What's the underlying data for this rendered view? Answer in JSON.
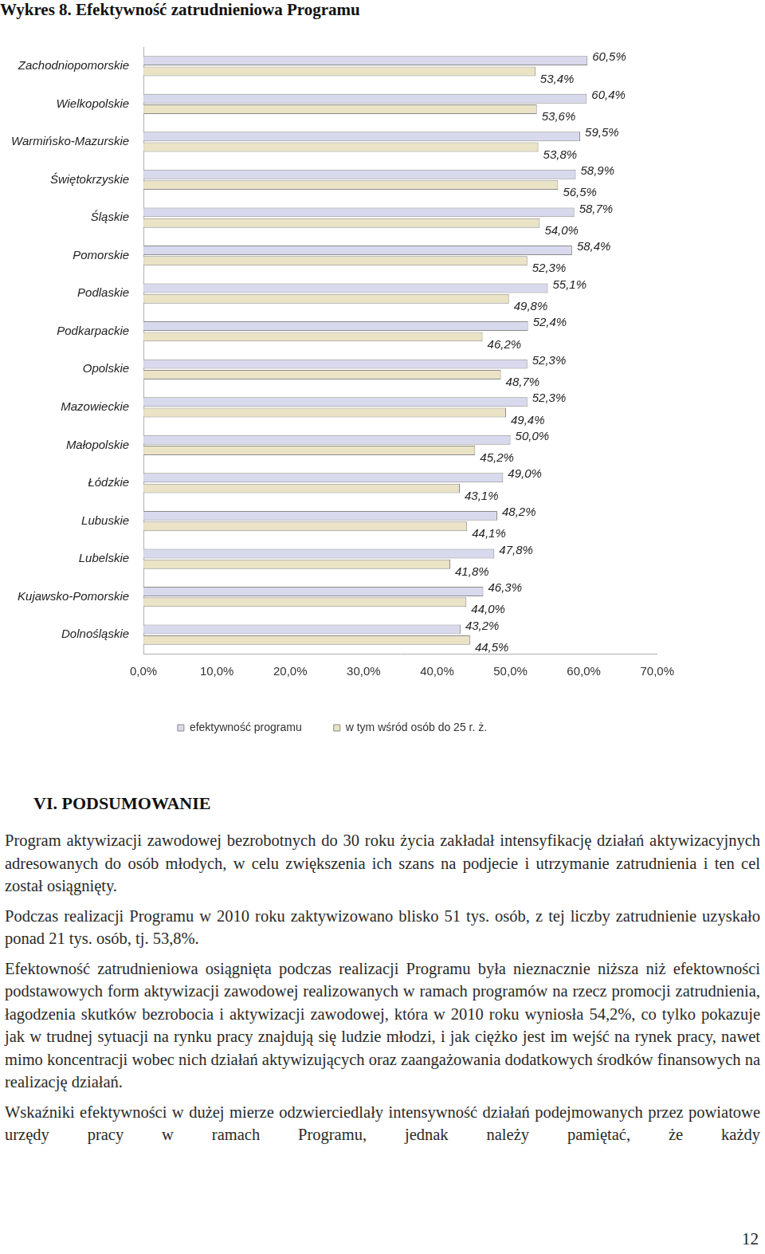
{
  "chart_data": {
    "type": "bar",
    "orientation": "horizontal",
    "title": "Wykres 8. Efektywność zatrudnieniowa Programu",
    "categories": [
      "Zachodniopomorskie",
      "Wielkopolskie",
      "Warmińsko-Mazurskie",
      "Świętokrzyskie",
      "Śląskie",
      "Pomorskie",
      "Podlaskie",
      "Podkarpackie",
      "Opolskie",
      "Mazowieckie",
      "Małopolskie",
      "Łódzkie",
      "Lubuskie",
      "Lubelskie",
      "Kujawsko-Pomorskie",
      "Dolnośląskie"
    ],
    "series": [
      {
        "name": "efektywność programu",
        "color": "#d9d9ee",
        "values": [
          60.5,
          60.4,
          59.5,
          58.9,
          58.7,
          58.4,
          55.1,
          52.4,
          52.3,
          52.3,
          50.0,
          49.0,
          48.2,
          47.8,
          46.3,
          43.2
        ],
        "value_labels": [
          "60,5%",
          "60,4%",
          "59,5%",
          "58,9%",
          "58,7%",
          "58,4%",
          "55,1%",
          "52,4%",
          "52,3%",
          "52,3%",
          "50,0%",
          "49,0%",
          "48,2%",
          "47,8%",
          "46,3%",
          "43,2%"
        ]
      },
      {
        "name": "w tym wśród osób do 25 r. ż.",
        "color": "#ebe3c6",
        "values": [
          53.4,
          53.6,
          53.8,
          56.5,
          54.0,
          52.3,
          49.8,
          46.2,
          48.7,
          49.4,
          45.2,
          43.1,
          44.1,
          41.8,
          44.0,
          44.5
        ],
        "value_labels": [
          "53,4%",
          "53,6%",
          "53,8%",
          "56,5%",
          "54,0%",
          "52,3%",
          "49,8%",
          "46,2%",
          "48,7%",
          "49,4%",
          "45,2%",
          "43,1%",
          "44,1%",
          "41,8%",
          "44,0%",
          "44,5%"
        ]
      }
    ],
    "xlim": [
      0,
      70
    ],
    "xticks": [
      {
        "value": 0,
        "label": "0,0%"
      },
      {
        "value": 10,
        "label": "10,0%"
      },
      {
        "value": 20,
        "label": "20,0%"
      },
      {
        "value": 30,
        "label": "30,0%"
      },
      {
        "value": 40,
        "label": "40,0%"
      },
      {
        "value": 50,
        "label": "50,0%"
      },
      {
        "value": 60,
        "label": "60,0%"
      },
      {
        "value": 70,
        "label": "70,0%"
      }
    ],
    "grid": false,
    "legend": "bottom",
    "data_labels": true
  },
  "section": {
    "title": "VI. PODSUMOWANIE",
    "paragraphs": [
      "Program aktywizacji zawodowej bezrobotnych do 30 roku życia zakładał intensyfikację działań aktywizacyjnych adresowanych do osób młodych, w celu zwiększenia ich szans na podjecie i utrzymanie zatrudnienia i ten cel został osiągnięty.",
      "Podczas realizacji Programu w 2010 roku zaktywizowano blisko 51 tys. osób, z tej liczby zatrudnienie uzyskało ponad 21 tys. osób, tj. 53,8%.",
      "Efektowność zatrudnieniowa osiągnięta podczas realizacji Programu była nieznacznie niższa niż efektowności podstawowych form aktywizacji zawodowej realizowanych w ramach programów na rzecz promocji zatrudnienia, łagodzenia skutków bezrobocia i aktywizacji zawodowej, która w 2010 roku wyniosła 54,2%, co tylko pokazuje jak w trudnej sytuacji na rynku pracy znajdują się ludzie młodzi, i jak ciężko jest im wejść na rynek pracy, nawet mimo koncentracji wobec nich działań aktywizujących oraz zaangażowania dodatkowych środków finansowych na realizację działań.",
      "Wskaźniki efektywności w dużej mierze odzwierciedlały intensywność działań podejmowanych przez powiatowe urzędy pracy w ramach Programu, jednak należy pamiętać, że każdy"
    ]
  },
  "page_number": 12
}
